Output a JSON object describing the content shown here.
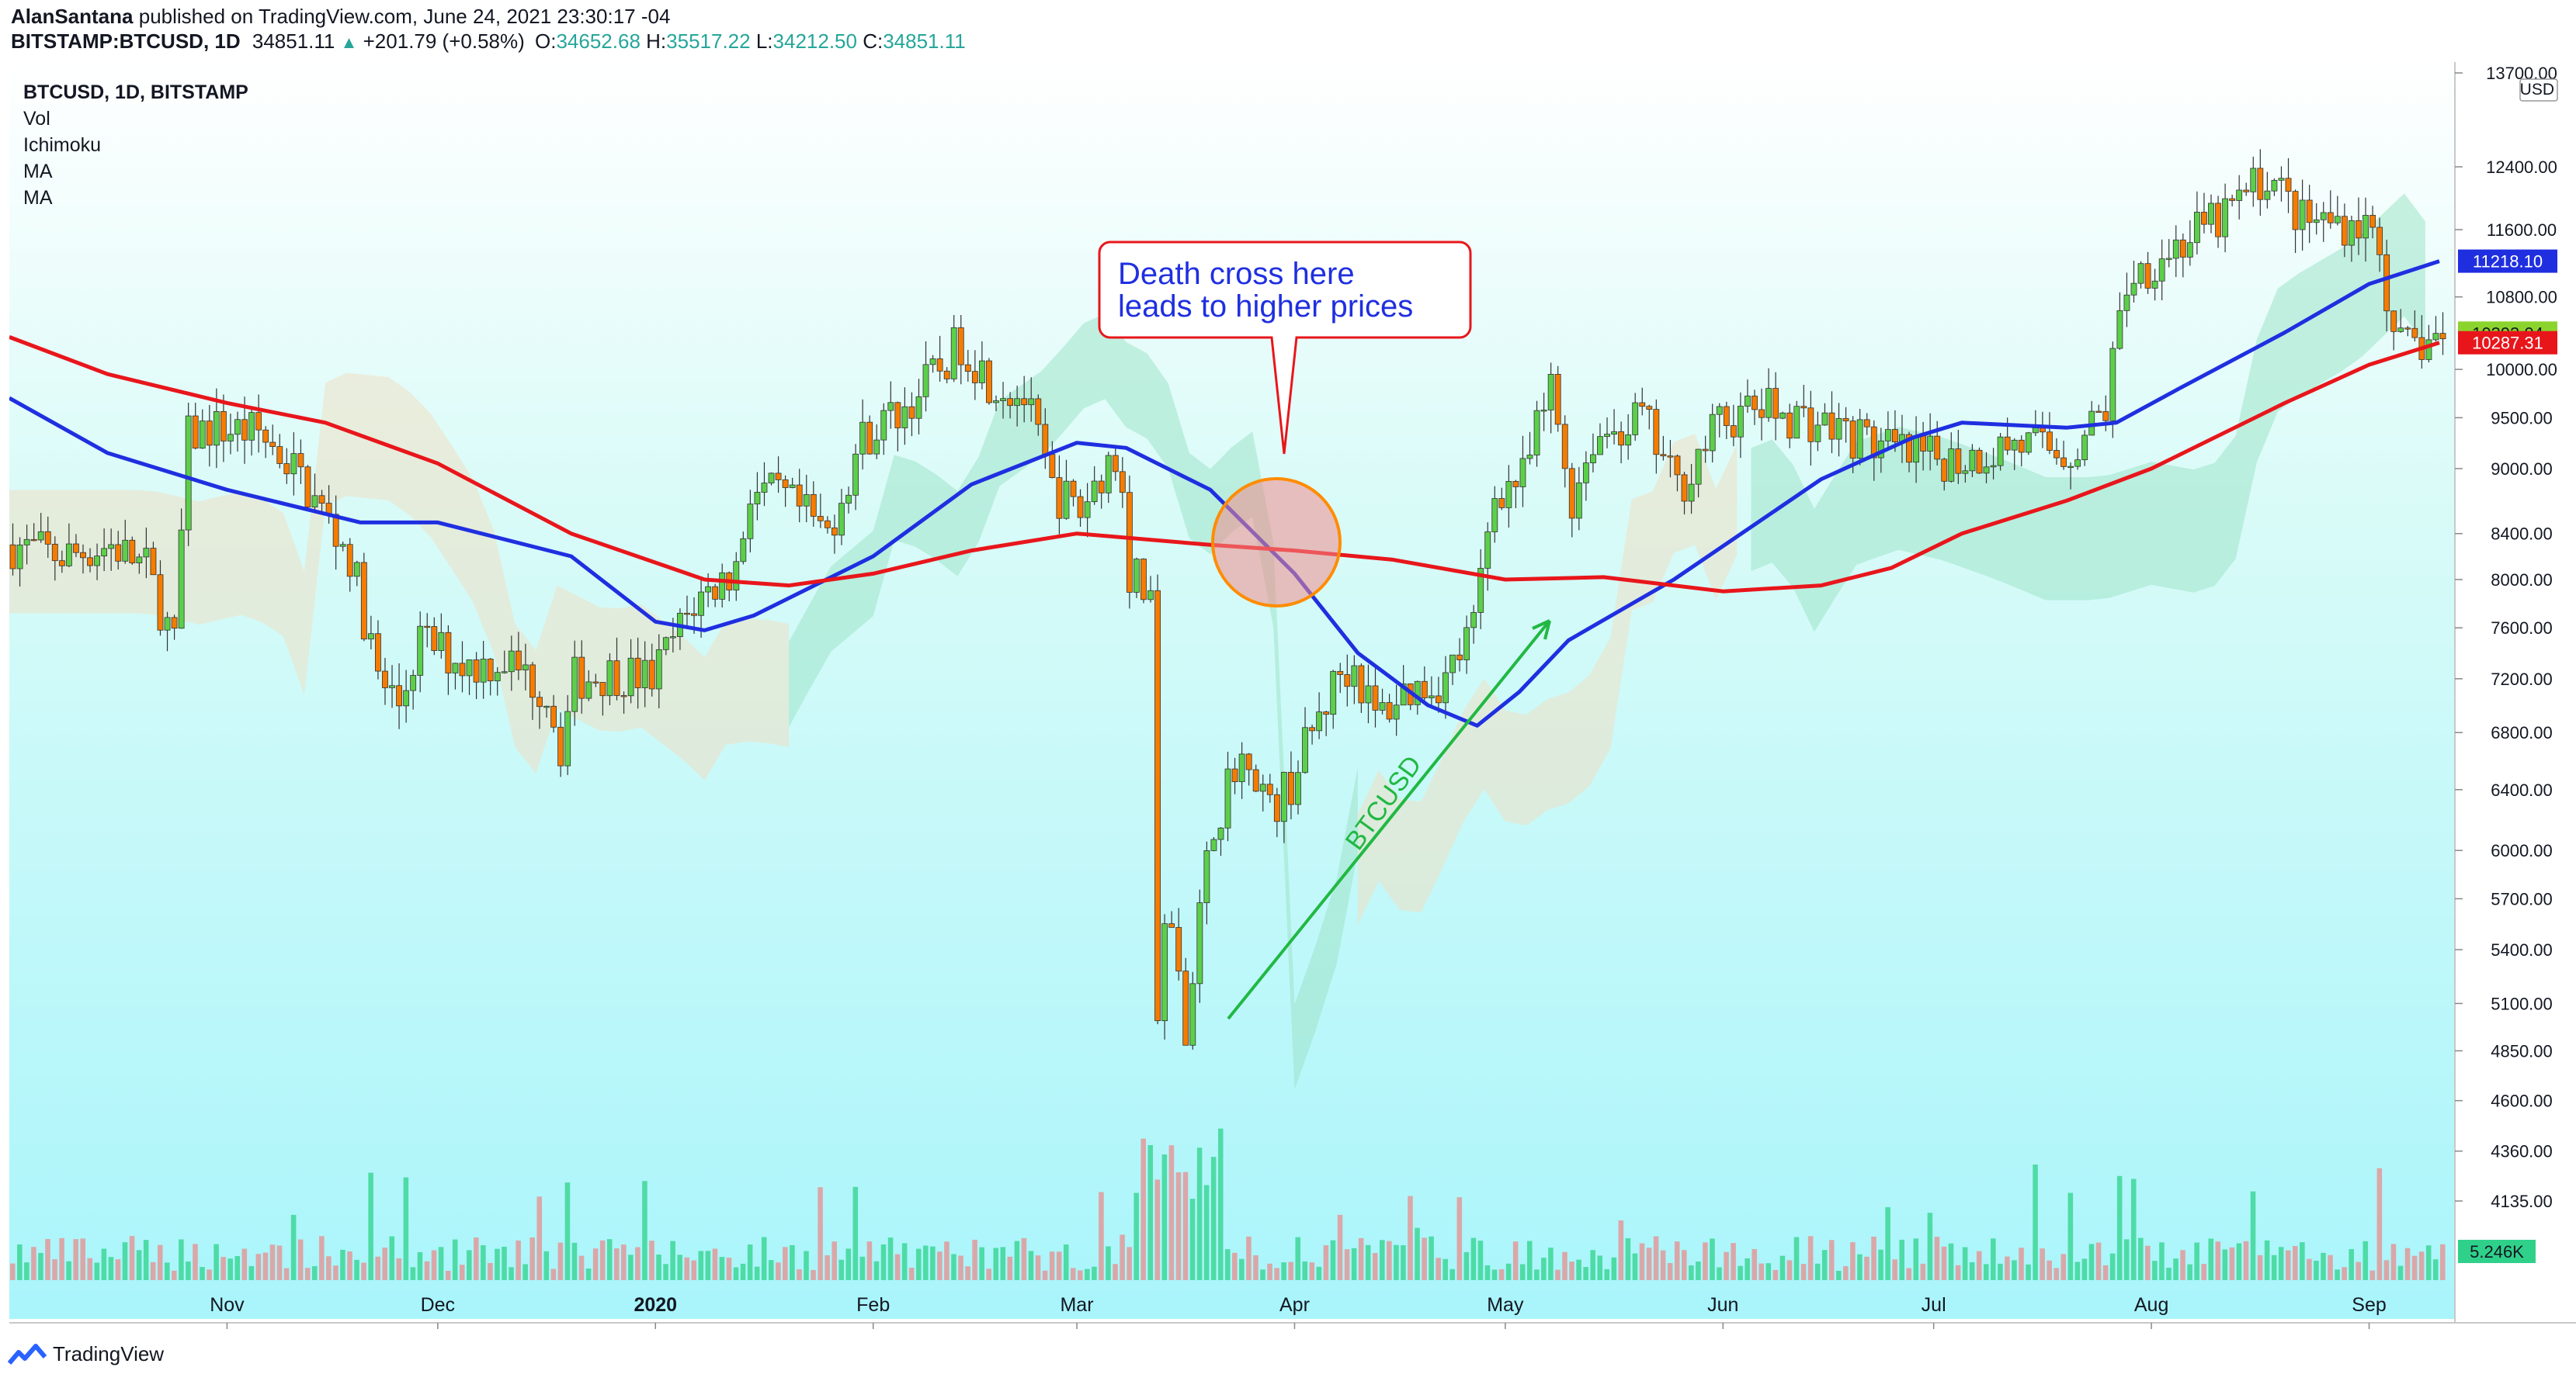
{
  "header": {
    "author": "AlanSantana",
    "published": "published on TradingView.com, June 24, 2021 23:30:17 -04",
    "symbol": "BITSTAMP:BTCUSD, 1D",
    "last": "34851.11",
    "change": "+201.79 (+0.58%)",
    "open_label": "O:",
    "open": "34652.68",
    "high_label": "H:",
    "high": "35517.22",
    "low_label": "L:",
    "low": "34212.50",
    "close_label": "C:",
    "close": "34851.11"
  },
  "legend": [
    "BTCUSD, 1D, BITSTAMP",
    "Vol",
    "Ichimoku",
    "MA",
    "MA"
  ],
  "annotation": {
    "line1": "Death cross here",
    "line2": "leads to higher prices"
  },
  "diagonal_label": "BTCUSD",
  "footer": {
    "brand": "TradingView"
  },
  "colors": {
    "up": "#26a69a",
    "candle_up": "#5ccf4a",
    "candle_down": "#f57c00",
    "ma_fast": "#1f2fe0",
    "ma_slow": "#e8161b",
    "cloud_green": "#9fe3c9",
    "cloud_tan": "#efe0c4",
    "bg_top": "#ffffff",
    "bg_bottom": "#a9f5fb",
    "arrow": "#21b842",
    "annotation_text": "#1f2fe0",
    "annotation_border": "#e8161b",
    "price_tag_green": "#8bd42e",
    "price_tag_red": "#e8161b",
    "price_tag_blue": "#1f2fe0",
    "volume_tag": "#2fd18a"
  },
  "chart_data": {
    "type": "candlestick",
    "y_scale": "log",
    "ylim": [
      4000,
      13700
    ],
    "currency": "USD",
    "y_ticks": [
      "13700.00",
      "12400.00",
      "11600.00",
      "10800.00",
      "10000.00",
      "9500.00",
      "9000.00",
      "8400.00",
      "8000.00",
      "7600.00",
      "7200.00",
      "6800.00",
      "6400.00",
      "6000.00",
      "5700.00",
      "5400.00",
      "5100.00",
      "4850.00",
      "4600.00",
      "4360.00",
      "4135.00"
    ],
    "x_ticks": [
      "Nov",
      "Dec",
      "2020",
      "Feb",
      "Mar",
      "Apr",
      "May",
      "Jun",
      "Jul",
      "Aug",
      "Sep"
    ],
    "x_tick_dates": [
      "2019-11-01",
      "2019-12-01",
      "2020-01-01",
      "2020-02-01",
      "2020-03-01",
      "2020-04-01",
      "2020-05-01",
      "2020-06-01",
      "2020-07-01",
      "2020-08-01",
      "2020-09-01"
    ],
    "date_range": [
      "2019-10-01",
      "2020-09-11"
    ],
    "price_path": [
      [
        "2019-10-01",
        8300
      ],
      [
        "2019-10-08",
        8200
      ],
      [
        "2019-10-15",
        8300
      ],
      [
        "2019-10-20",
        8100
      ],
      [
        "2019-10-24",
        7450
      ],
      [
        "2019-10-26",
        9300
      ],
      [
        "2019-10-29",
        9400
      ],
      [
        "2019-11-05",
        9350
      ],
      [
        "2019-11-10",
        9000
      ],
      [
        "2019-11-18",
        8200
      ],
      [
        "2019-11-22",
        7200
      ],
      [
        "2019-11-25",
        7000
      ],
      [
        "2019-11-28",
        7500
      ],
      [
        "2019-12-05",
        7300
      ],
      [
        "2019-12-10",
        7350
      ],
      [
        "2019-12-16",
        7100
      ],
      [
        "2019-12-18",
        6700
      ],
      [
        "2019-12-20",
        7200
      ],
      [
        "2019-12-26",
        7250
      ],
      [
        "2019-12-31",
        7200
      ],
      [
        "2020-01-06",
        7800
      ],
      [
        "2020-01-12",
        8100
      ],
      [
        "2020-01-14",
        8800
      ],
      [
        "2020-01-19",
        8700
      ],
      [
        "2020-01-25",
        8400
      ],
      [
        "2020-01-30",
        9300
      ],
      [
        "2020-02-05",
        9600
      ],
      [
        "2020-02-10",
        10000
      ],
      [
        "2020-02-13",
        10300
      ],
      [
        "2020-02-17",
        9900
      ],
      [
        "2020-02-22",
        9700
      ],
      [
        "2020-02-26",
        8800
      ],
      [
        "2020-03-01",
        8600
      ],
      [
        "2020-03-05",
        9100
      ],
      [
        "2020-03-07",
        8900
      ],
      [
        "2020-03-08",
        8050
      ],
      [
        "2020-03-11",
        7900
      ],
      [
        "2020-03-12",
        4900
      ],
      [
        "2020-03-13",
        5650
      ],
      [
        "2020-03-16",
        5000
      ],
      [
        "2020-03-20",
        6200
      ],
      [
        "2020-03-25",
        6700
      ],
      [
        "2020-03-28",
        6250
      ],
      [
        "2020-03-31",
        6450
      ],
      [
        "2020-04-03",
        6800
      ],
      [
        "2020-04-07",
        7250
      ],
      [
        "2020-04-09",
        7300
      ],
      [
        "2020-04-12",
        6900
      ],
      [
        "2020-04-16",
        7100
      ],
      [
        "2020-04-22",
        7200
      ],
      [
        "2020-04-26",
        7600
      ],
      [
        "2020-04-29",
        8800
      ],
      [
        "2020-05-03",
        8900
      ],
      [
        "2020-05-07",
        9800
      ],
      [
        "2020-05-10",
        8700
      ],
      [
        "2020-05-13",
        9300
      ],
      [
        "2020-05-20",
        9500
      ],
      [
        "2020-05-25",
        8800
      ],
      [
        "2020-05-31",
        9450
      ],
      [
        "2020-06-06",
        9600
      ],
      [
        "2020-06-12",
        9500
      ],
      [
        "2020-06-20",
        9300
      ],
      [
        "2020-06-27",
        9100
      ],
      [
        "2020-07-05",
        9100
      ],
      [
        "2020-07-12",
        9250
      ],
      [
        "2020-07-20",
        9150
      ],
      [
        "2020-07-25",
        9600
      ],
      [
        "2020-07-28",
        11000
      ],
      [
        "2020-08-02",
        11300
      ],
      [
        "2020-08-10",
        11700
      ],
      [
        "2020-08-17",
        12300
      ],
      [
        "2020-08-22",
        11700
      ],
      [
        "2020-08-30",
        11700
      ],
      [
        "2020-09-02",
        11500
      ],
      [
        "2020-09-04",
        10200
      ],
      [
        "2020-09-11",
        10350
      ]
    ],
    "series": [
      {
        "name": "MA",
        "values": [
          [
            "2019-10-01",
            9700
          ],
          [
            "2019-10-15",
            9150
          ],
          [
            "2019-11-01",
            8800
          ],
          [
            "2019-11-20",
            8500
          ],
          [
            "2019-12-01",
            8500
          ],
          [
            "2019-12-20",
            8200
          ],
          [
            "2020-01-01",
            7650
          ],
          [
            "2020-01-08",
            7580
          ],
          [
            "2020-01-15",
            7700
          ],
          [
            "2020-02-01",
            8200
          ],
          [
            "2020-02-15",
            8850
          ],
          [
            "2020-03-01",
            9250
          ],
          [
            "2020-03-08",
            9200
          ],
          [
            "2020-03-20",
            8800
          ],
          [
            "2020-04-01",
            8050
          ],
          [
            "2020-04-10",
            7400
          ],
          [
            "2020-04-20",
            7000
          ],
          [
            "2020-04-27",
            6850
          ],
          [
            "2020-05-03",
            7100
          ],
          [
            "2020-05-10",
            7500
          ],
          [
            "2020-05-25",
            8000
          ],
          [
            "2020-06-15",
            8900
          ],
          [
            "2020-06-28",
            9300
          ],
          [
            "2020-07-05",
            9450
          ],
          [
            "2020-07-20",
            9400
          ],
          [
            "2020-07-27",
            9450
          ],
          [
            "2020-08-05",
            9800
          ],
          [
            "2020-08-20",
            10400
          ],
          [
            "2020-09-01",
            10950
          ],
          [
            "2020-09-11",
            11218.1
          ]
        ]
      },
      {
        "name": "MA",
        "values": [
          [
            "2019-10-01",
            10350
          ],
          [
            "2019-10-15",
            9950
          ],
          [
            "2019-11-01",
            9650
          ],
          [
            "2019-11-15",
            9450
          ],
          [
            "2019-12-01",
            9050
          ],
          [
            "2019-12-20",
            8400
          ],
          [
            "2020-01-08",
            8000
          ],
          [
            "2020-01-20",
            7950
          ],
          [
            "2020-02-01",
            8050
          ],
          [
            "2020-02-15",
            8250
          ],
          [
            "2020-03-01",
            8400
          ],
          [
            "2020-03-20",
            8300
          ],
          [
            "2020-04-01",
            8250
          ],
          [
            "2020-04-15",
            8170
          ],
          [
            "2020-05-01",
            8000
          ],
          [
            "2020-05-15",
            8020
          ],
          [
            "2020-06-01",
            7900
          ],
          [
            "2020-06-15",
            7950
          ],
          [
            "2020-06-25",
            8100
          ],
          [
            "2020-07-05",
            8400
          ],
          [
            "2020-07-20",
            8700
          ],
          [
            "2020-08-01",
            9000
          ],
          [
            "2020-08-20",
            9650
          ],
          [
            "2020-09-01",
            10050
          ],
          [
            "2020-09-11",
            10287.31
          ]
        ]
      }
    ],
    "price_labels": [
      {
        "value": 10393.04,
        "text": "10393.04",
        "color": "#8bd42e"
      },
      {
        "value": 10287.31,
        "text": "10287.31",
        "color": "#e8161b"
      },
      {
        "value": 11218.1,
        "text": "11218.10",
        "color": "#1f2fe0"
      }
    ],
    "volume_label": "5.246K"
  }
}
